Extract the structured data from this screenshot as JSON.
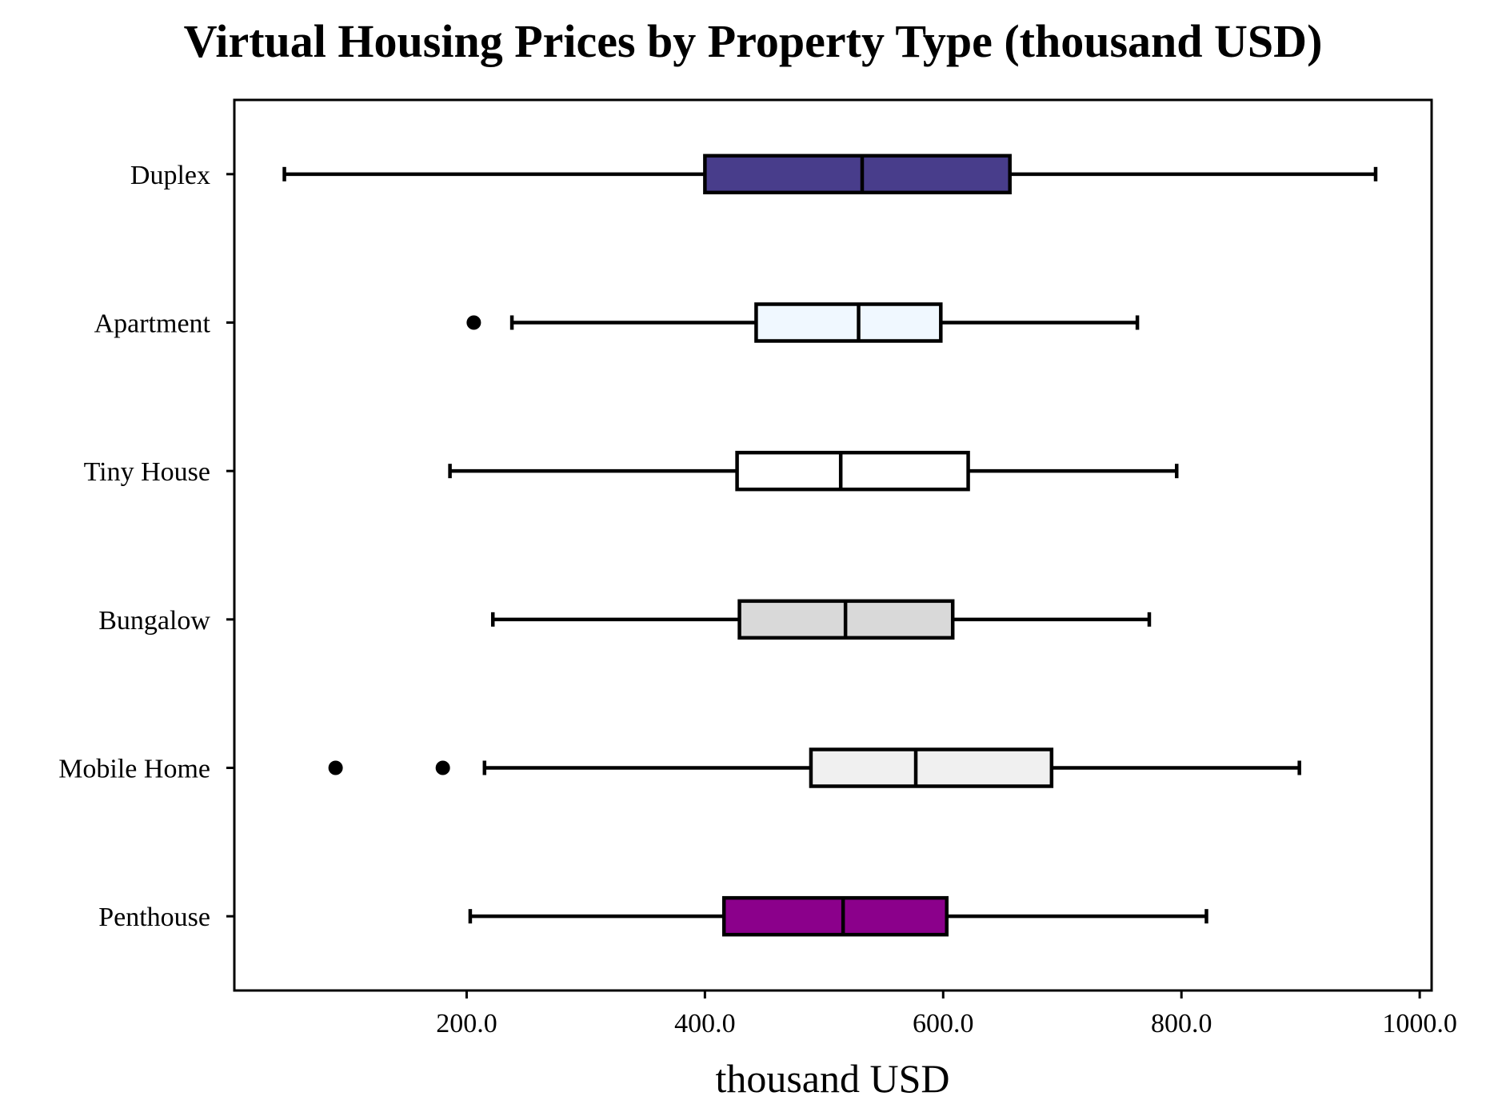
{
  "chart_data": {
    "type": "boxplot",
    "orientation": "horizontal",
    "title": "Virtual Housing Prices by Property Type (thousand USD)",
    "xlabel": "thousand USD",
    "ylabel": "",
    "xlim": [
      5,
      1010
    ],
    "xticks": [
      200,
      400,
      600,
      800,
      1000
    ],
    "xtick_labels": [
      "200.0",
      "400.0",
      "600.0",
      "800.0",
      "1000.0"
    ],
    "grid": false,
    "categories": [
      "Duplex",
      "Apartment",
      "Tiny House",
      "Bungalow",
      "Mobile Home",
      "Penthouse"
    ],
    "boxes": [
      {
        "category": "Duplex",
        "whisker_low": 47,
        "q1": 400,
        "median": 532,
        "q3": 656,
        "whisker_high": 963,
        "outliers": [],
        "color": "#483d8b"
      },
      {
        "category": "Apartment",
        "whisker_low": 238,
        "q1": 443,
        "median": 529,
        "q3": 598,
        "whisker_high": 763,
        "outliers": [
          206
        ],
        "color": "#f0f8ff"
      },
      {
        "category": "Tiny House",
        "whisker_low": 186,
        "q1": 427,
        "median": 514,
        "q3": 621,
        "whisker_high": 796,
        "outliers": [],
        "color": "#ffffff"
      },
      {
        "category": "Bungalow",
        "whisker_low": 222,
        "q1": 429,
        "median": 518,
        "q3": 608,
        "whisker_high": 773,
        "outliers": [],
        "color": "#d9d9d9"
      },
      {
        "category": "Mobile Home",
        "whisker_low": 215,
        "q1": 489,
        "median": 577,
        "q3": 691,
        "whisker_high": 899,
        "outliers": [
          90,
          180
        ],
        "color": "#f0f0f0"
      },
      {
        "category": "Penthouse",
        "whisker_low": 203,
        "q1": 416,
        "median": 516,
        "q3": 603,
        "whisker_high": 821,
        "outliers": [],
        "color": "#8b008b"
      }
    ]
  }
}
